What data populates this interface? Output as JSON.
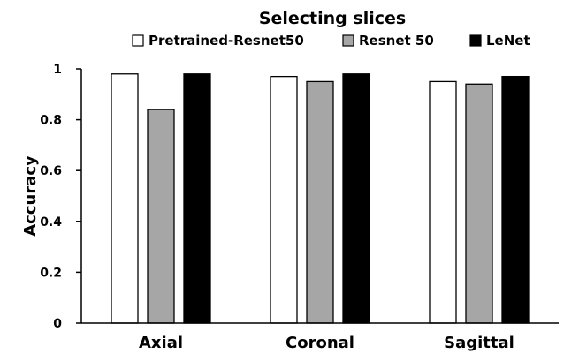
{
  "chart_data": {
    "type": "bar",
    "title": "Selecting slices",
    "xlabel": "",
    "ylabel": "Accuracy",
    "ylim": [
      0,
      1
    ],
    "yticks": [
      "0",
      "0.2",
      "0.4",
      "0.6",
      "0.8",
      "1"
    ],
    "categories": [
      "Axial",
      "Coronal",
      "Sagittal"
    ],
    "series": [
      {
        "name": "Pretrained-Resnet50",
        "color": "#ffffff",
        "values": [
          0.98,
          0.97,
          0.95
        ]
      },
      {
        "name": "Resnet 50",
        "color": "#a6a6a6",
        "values": [
          0.84,
          0.95,
          0.94
        ]
      },
      {
        "name": "LeNet",
        "color": "#000000",
        "values": [
          0.98,
          0.98,
          0.97
        ]
      }
    ],
    "legend_position": "top",
    "grid": false
  }
}
